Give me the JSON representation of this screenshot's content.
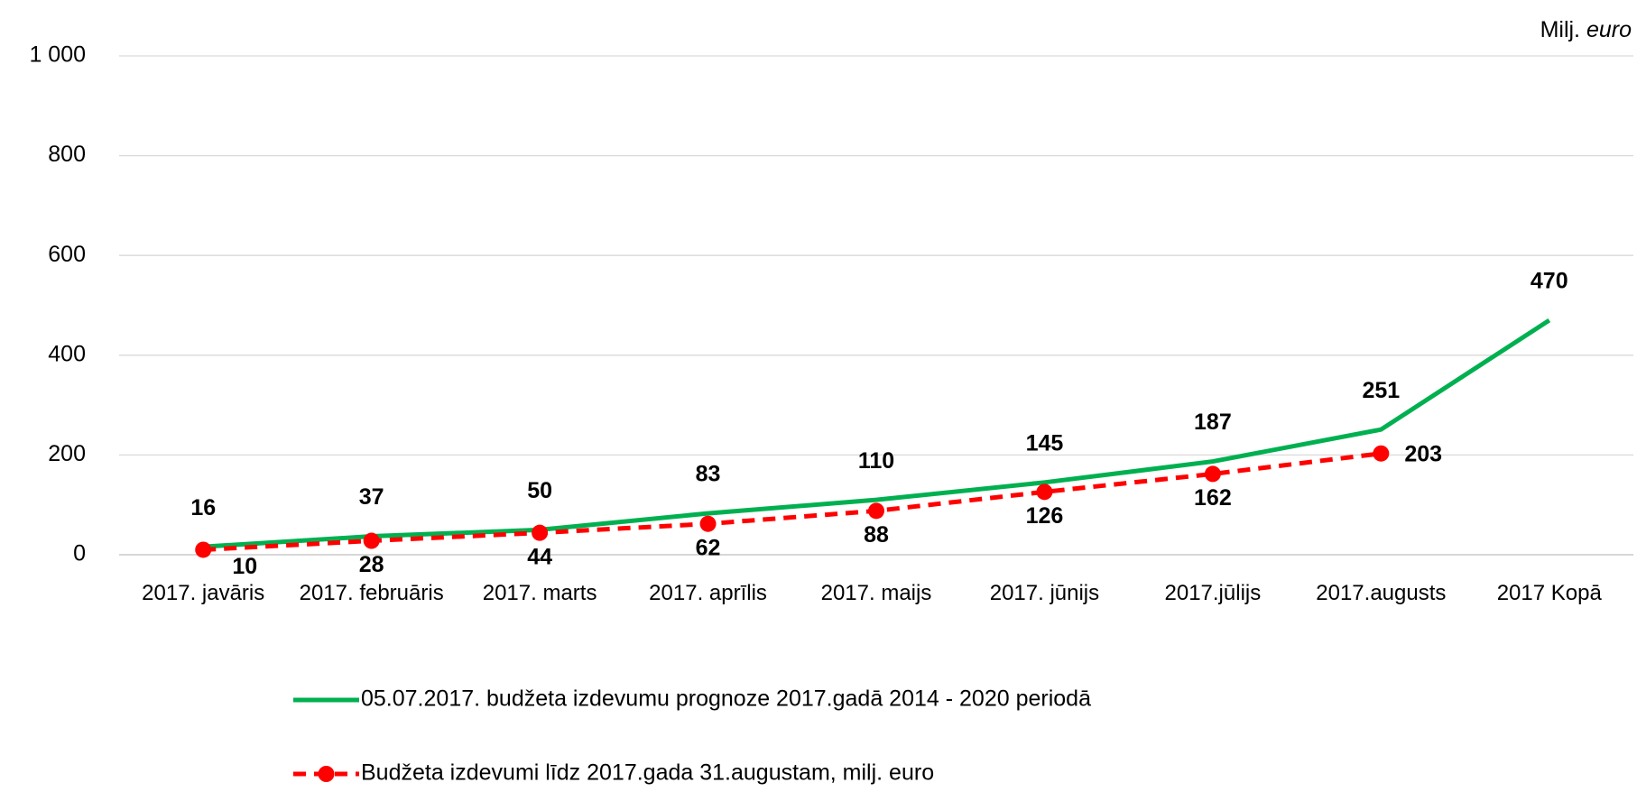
{
  "chart_data": {
    "type": "line",
    "y_unit": [
      "Milj.",
      "euro"
    ],
    "categories": [
      "2017. javāris",
      "2017. februāris",
      "2017. marts",
      "2017. aprīlis",
      "2017. maijs",
      "2017. jūnijs",
      "2017.jūlijs",
      "2017.augusts",
      "2017 Kopā"
    ],
    "series": [
      {
        "name": "05.07.2017. budžeta izdevumu prognoze 2017.gadā 2014 - 2020 periodā",
        "color": "#00b050",
        "dashed": false,
        "markers": false,
        "values": [
          16,
          37,
          50,
          83,
          110,
          145,
          187,
          251,
          470
        ]
      },
      {
        "name": "Budžeta izdevumi līdz 2017.gada 31.augustam, milj. euro",
        "color": "#ff0000",
        "dashed": true,
        "markers": true,
        "values": [
          10,
          28,
          44,
          62,
          88,
          126,
          162,
          203,
          null
        ]
      }
    ],
    "ylim": [
      0,
      1000
    ],
    "yticks": [
      0,
      200,
      400,
      600,
      800,
      {
        "value": 1000,
        "label": "1 000"
      }
    ],
    "grid": true,
    "legend": "bottom"
  }
}
